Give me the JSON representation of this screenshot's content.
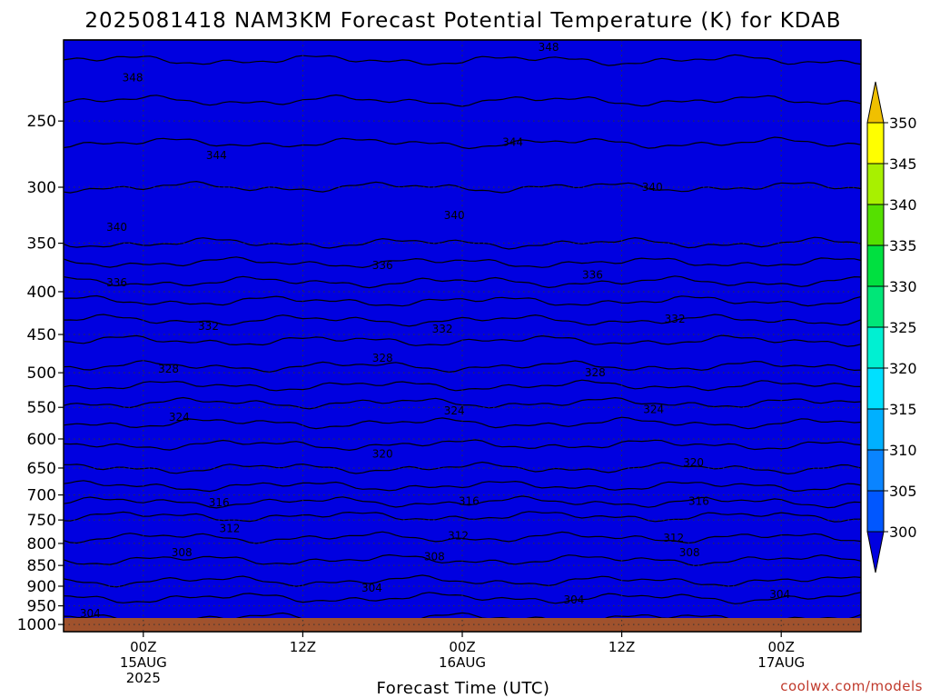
{
  "chart_data": {
    "type": "area",
    "title": "2025081418 NAM3KM Forecast Potential Temperature (K) for KDAB",
    "xlabel": "Forecast Time (UTC)",
    "ylabel": "",
    "x_ticks": [
      {
        "hour": 6,
        "lines": [
          "00Z",
          "15AUG",
          "2025"
        ]
      },
      {
        "hour": 18,
        "lines": [
          "12Z"
        ]
      },
      {
        "hour": 30,
        "lines": [
          "00Z",
          "16AUG"
        ]
      },
      {
        "hour": 42,
        "lines": [
          "12Z"
        ]
      },
      {
        "hour": 54,
        "lines": [
          "00Z",
          "17AUG"
        ]
      }
    ],
    "xlim": [
      0,
      60
    ],
    "y_ticks": [
      250,
      300,
      350,
      400,
      450,
      500,
      550,
      600,
      650,
      700,
      750,
      800,
      850,
      900,
      950,
      1000
    ],
    "ylim": [
      1020,
      200
    ],
    "yscale": "log",
    "grid": true,
    "colorbar": {
      "ticks": [
        300,
        305,
        310,
        315,
        320,
        325,
        330,
        335,
        340,
        345,
        350
      ],
      "colors": [
        "#0000e0",
        "#0057ff",
        "#0a84ff",
        "#00b0ff",
        "#00e0ff",
        "#00f0d2",
        "#00e678",
        "#00e040",
        "#55e000",
        "#a8f000",
        "#ffff00",
        "#f0c000"
      ]
    },
    "levels_K": [
      300,
      305,
      310,
      315,
      320,
      325,
      330,
      335,
      340,
      345,
      350
    ],
    "isentrope_profile": {
      "pressure_hPa": [
        1000,
        950,
        900,
        850,
        800,
        750,
        700,
        650,
        600,
        550,
        500,
        450,
        400,
        350,
        300,
        250,
        200
      ],
      "theta_K": [
        301.5,
        303,
        305.5,
        307.5,
        309.5,
        311.5,
        315,
        318,
        320.5,
        323.5,
        327.5,
        330.5,
        335,
        340,
        342,
        345,
        349
      ]
    },
    "contour_labels": [
      {
        "text": "348",
        "hour": 5.2,
        "p": 222
      },
      {
        "text": "348",
        "hour": 36.5,
        "p": 204
      },
      {
        "text": "344",
        "hour": 11.5,
        "p": 275
      },
      {
        "text": "344",
        "hour": 33.8,
        "p": 265
      },
      {
        "text": "340",
        "hour": 4.0,
        "p": 335
      },
      {
        "text": "340",
        "hour": 29.4,
        "p": 324
      },
      {
        "text": "340",
        "hour": 44.3,
        "p": 300
      },
      {
        "text": "336",
        "hour": 4.0,
        "p": 390
      },
      {
        "text": "336",
        "hour": 24.0,
        "p": 372
      },
      {
        "text": "336",
        "hour": 39.8,
        "p": 382
      },
      {
        "text": "332",
        "hour": 10.9,
        "p": 440
      },
      {
        "text": "332",
        "hour": 28.5,
        "p": 443
      },
      {
        "text": "332",
        "hour": 46.0,
        "p": 431
      },
      {
        "text": "328",
        "hour": 7.9,
        "p": 495
      },
      {
        "text": "328",
        "hour": 24.0,
        "p": 480
      },
      {
        "text": "328",
        "hour": 40.0,
        "p": 500
      },
      {
        "text": "324",
        "hour": 8.7,
        "p": 565
      },
      {
        "text": "324",
        "hour": 29.4,
        "p": 555
      },
      {
        "text": "324",
        "hour": 44.4,
        "p": 553
      },
      {
        "text": "320",
        "hour": 24.0,
        "p": 625
      },
      {
        "text": "320",
        "hour": 47.4,
        "p": 640
      },
      {
        "text": "316",
        "hour": 11.7,
        "p": 715
      },
      {
        "text": "316",
        "hour": 30.5,
        "p": 712
      },
      {
        "text": "316",
        "hour": 47.8,
        "p": 712
      },
      {
        "text": "312",
        "hour": 12.5,
        "p": 768
      },
      {
        "text": "312",
        "hour": 29.7,
        "p": 783
      },
      {
        "text": "312",
        "hour": 45.9,
        "p": 788
      },
      {
        "text": "308",
        "hour": 8.9,
        "p": 820
      },
      {
        "text": "308",
        "hour": 27.9,
        "p": 830
      },
      {
        "text": "308",
        "hour": 47.1,
        "p": 820
      },
      {
        "text": "304",
        "hour": 2.0,
        "p": 970
      },
      {
        "text": "304",
        "hour": 23.2,
        "p": 905
      },
      {
        "text": "304",
        "hour": 38.4,
        "p": 935
      },
      {
        "text": "304",
        "hour": 53.9,
        "p": 920
      }
    ]
  },
  "credit": "coolwx.com/models"
}
